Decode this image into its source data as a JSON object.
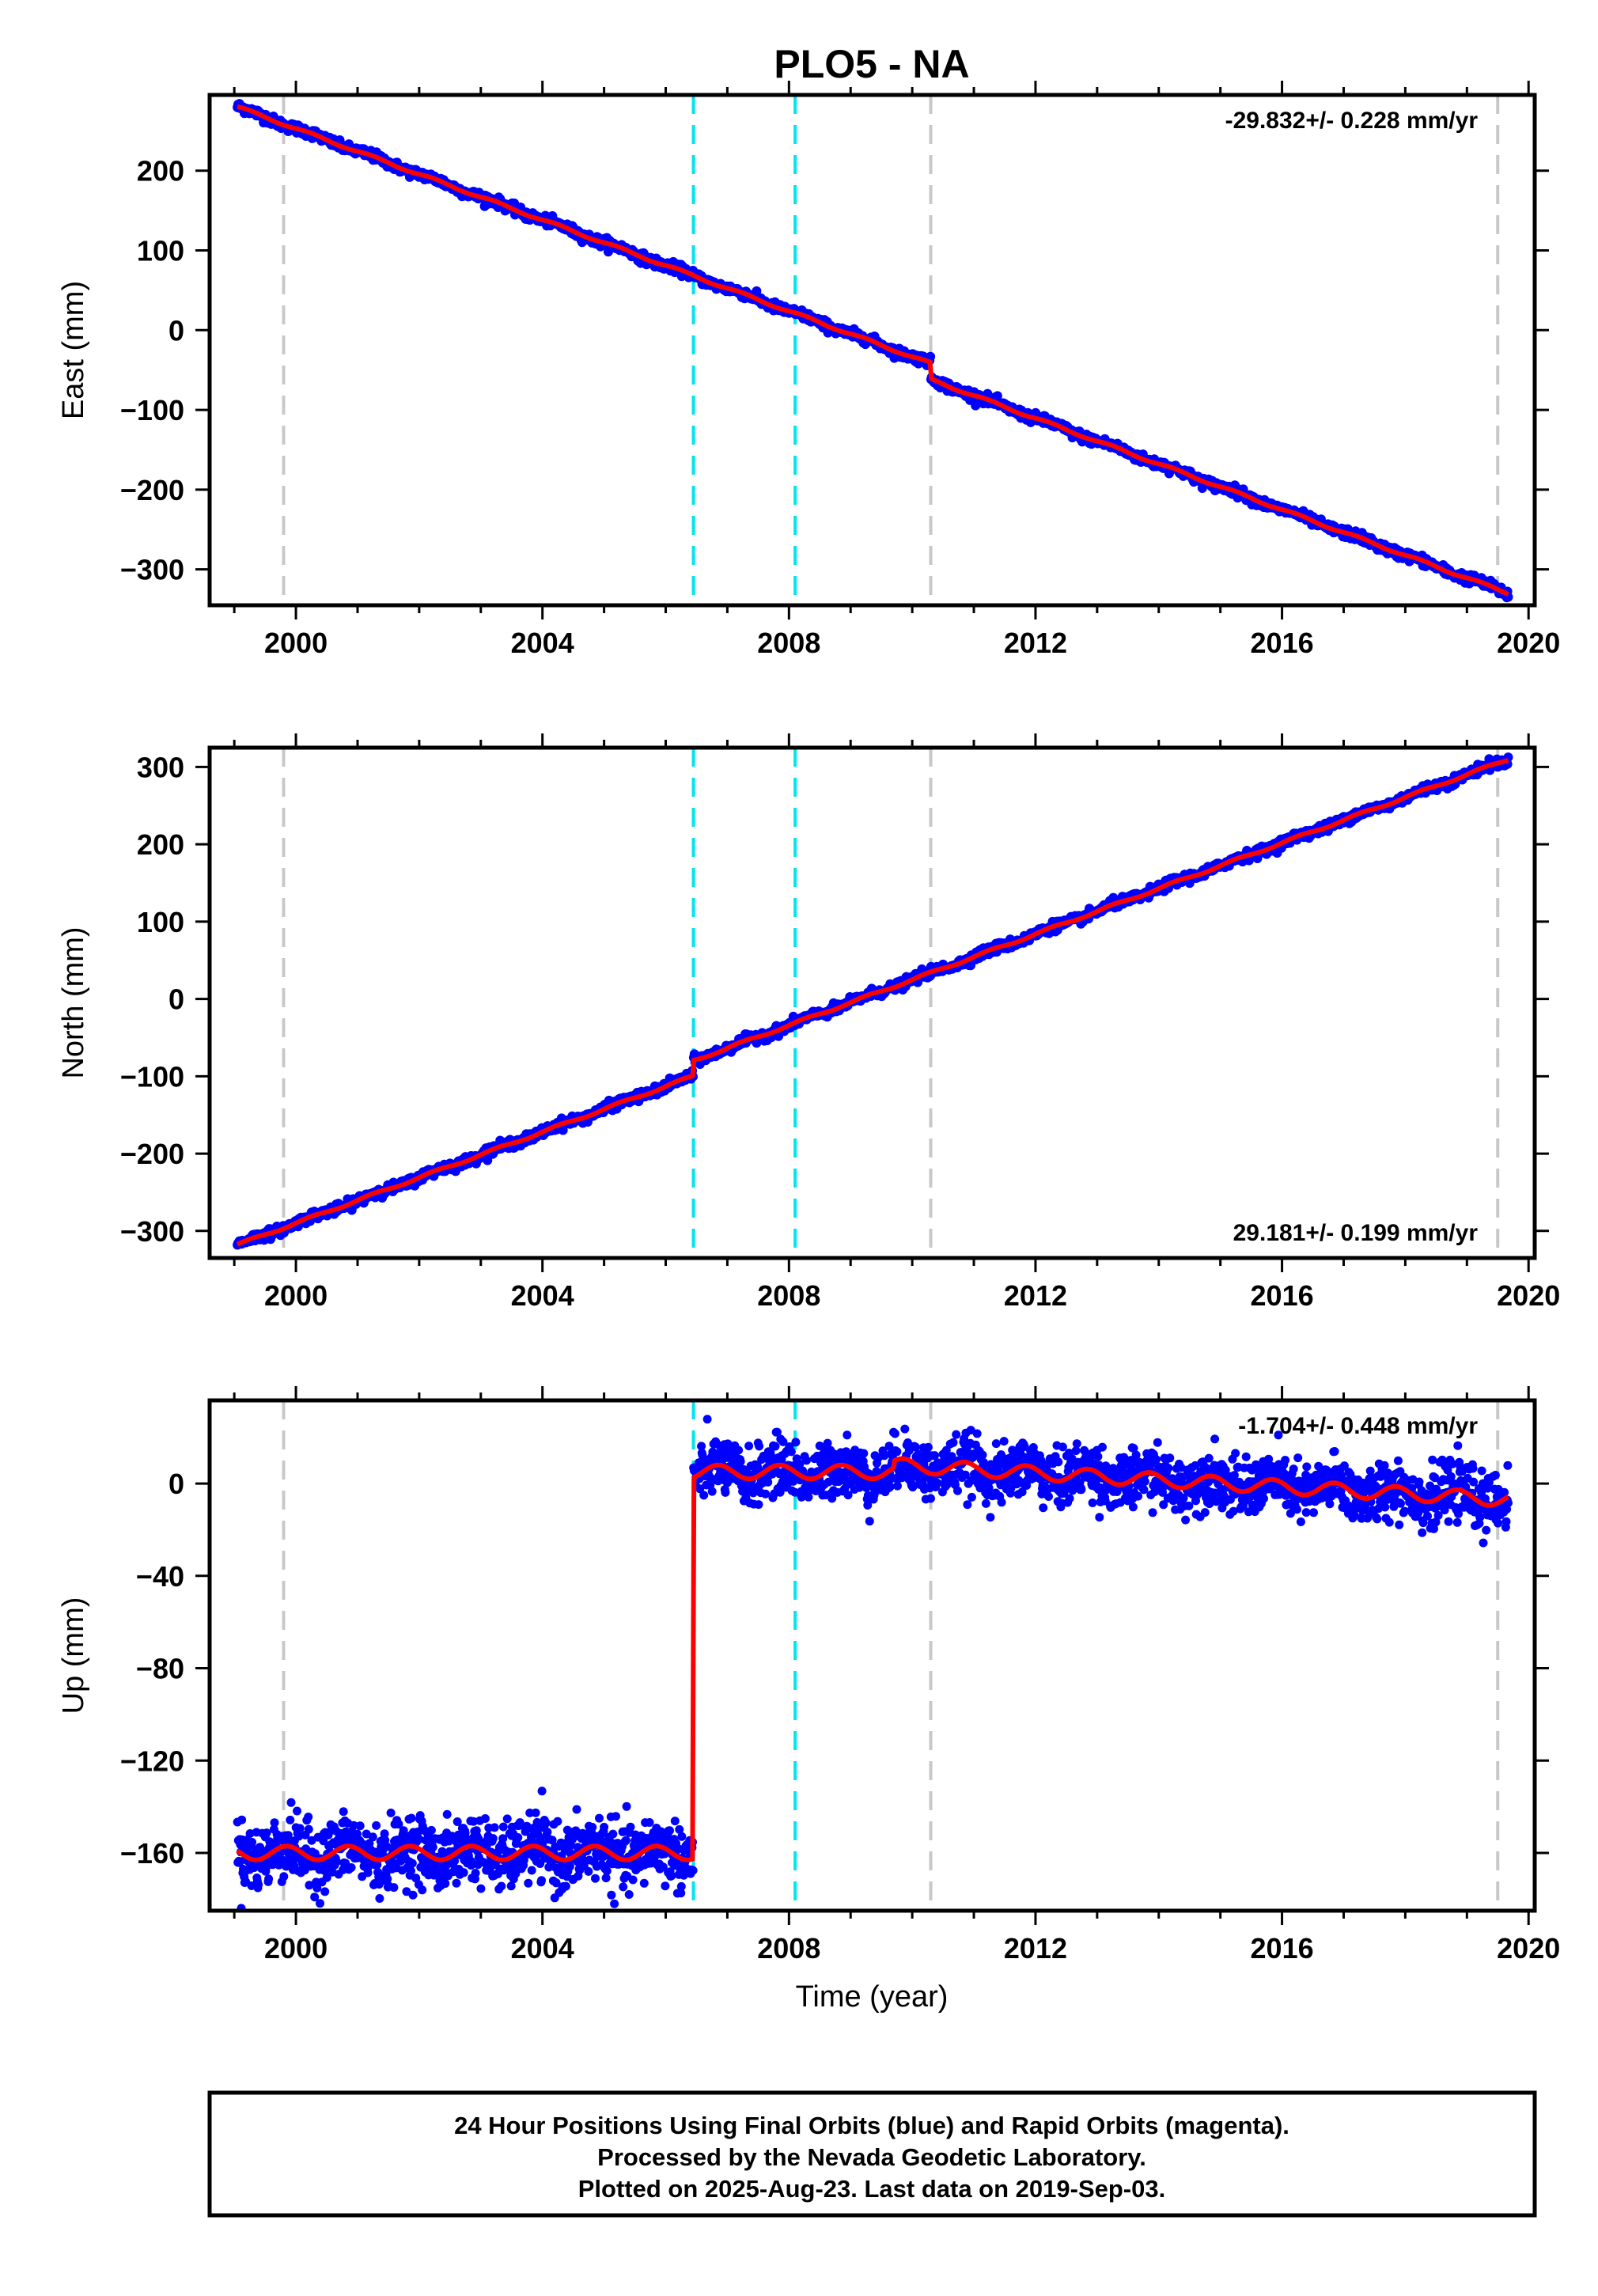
{
  "title": "PLO5 - NA",
  "xlabel": "Time (year)",
  "footer": {
    "line1": "24 Hour Positions Using Final Orbits (blue) and Rapid Orbits (magenta).",
    "line2": "Processed by the Nevada Geodetic Laboratory.",
    "line3": "Plotted on 2025-Aug-23. Last data on 2019-Sep-03."
  },
  "colors": {
    "data": "#0000ff",
    "model": "#ff0000",
    "equip_change": "#c8c8c8",
    "earthquake": "#00e5ee"
  },
  "chart_data": [
    {
      "type": "scatter",
      "name": "east",
      "ylabel": "East (mm)",
      "rate_text": "-29.832+/- 0.228 mm/yr",
      "rate_position": "top-right",
      "xlim": [
        1998.6,
        2020.1
      ],
      "ylim": [
        -345,
        295
      ],
      "yticks": [
        -300,
        -200,
        -100,
        0,
        100,
        200
      ],
      "xticks": [
        2000,
        2004,
        2008,
        2012,
        2016,
        2020
      ],
      "data_start": 1999.05,
      "data_end": 2019.67,
      "trend": [
        [
          1999.05,
          280
        ],
        [
          2019.67,
          -330
        ]
      ],
      "offsets": [
        {
          "t": 2010.3,
          "dy": -20
        }
      ],
      "equipment_lines": [
        1999.8,
        2010.3,
        2019.5
      ],
      "earthquake_lines": [
        2006.45,
        2008.1
      ],
      "grid": false
    },
    {
      "type": "scatter",
      "name": "north",
      "ylabel": "North (mm)",
      "rate_text": "29.181+/- 0.199 mm/yr",
      "rate_position": "bottom-right",
      "xlim": [
        1998.6,
        2020.1
      ],
      "ylim": [
        -335,
        325
      ],
      "yticks": [
        -300,
        -200,
        -100,
        0,
        100,
        200,
        300
      ],
      "xticks": [
        2000,
        2004,
        2008,
        2012,
        2016,
        2020
      ],
      "data_start": 1999.05,
      "data_end": 2019.67,
      "trend": [
        [
          1999.05,
          -318
        ],
        [
          2019.67,
          310
        ]
      ],
      "offsets": [
        {
          "t": 2006.45,
          "dy": 20
        }
      ],
      "equipment_lines": [
        1999.8,
        2010.3,
        2019.5
      ],
      "earthquake_lines": [
        2006.45,
        2008.1
      ],
      "grid": false
    },
    {
      "type": "scatter",
      "name": "up",
      "ylabel": "Up (mm)",
      "rate_text": "-1.704+/- 0.448 mm/yr",
      "rate_position": "top-right",
      "xlim": [
        1998.6,
        2020.1
      ],
      "ylim": [
        -185,
        36
      ],
      "yticks": [
        -160,
        -120,
        -80,
        -40,
        0
      ],
      "xticks": [
        2000,
        2004,
        2008,
        2012,
        2016,
        2020
      ],
      "data_start": 1999.05,
      "data_end": 2019.67,
      "segments": [
        {
          "start": 1999.05,
          "end": 2006.45,
          "level": -160,
          "noise": 7
        },
        {
          "start": 2006.45,
          "end": 2009.7,
          "level": 5,
          "noise": 6
        },
        {
          "start": 2009.7,
          "end": 2019.67,
          "level": 8,
          "noise": 6,
          "trend": -1.5
        }
      ],
      "equipment_lines": [
        1999.8,
        2010.3,
        2019.5
      ],
      "earthquake_lines": [
        2006.45,
        2008.1
      ],
      "grid": false
    }
  ]
}
